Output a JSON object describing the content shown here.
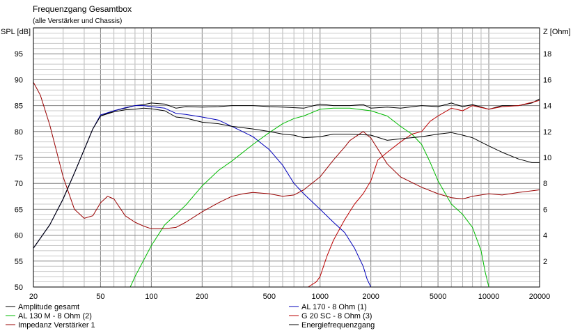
{
  "chart_data": {
    "type": "line",
    "title": "Frequenzgang Gesamtbox",
    "subtitle": "(alle Verstärker und Chassis)",
    "ylabel": "SPL [dB]",
    "y2label": "Z [Ohm]",
    "x_scale": "log",
    "xlim": [
      20,
      20000
    ],
    "ylim": [
      50,
      100
    ],
    "y2lim": [
      0,
      20
    ],
    "grid": true,
    "x_ticks": [
      {
        "value": 20,
        "label": "20"
      },
      {
        "value": 50,
        "label": "50"
      },
      {
        "value": 100,
        "label": "100"
      },
      {
        "value": 200,
        "label": "200"
      },
      {
        "value": 500,
        "label": "500"
      },
      {
        "value": 1000,
        "label": "1000"
      },
      {
        "value": 2000,
        "label": "2000"
      },
      {
        "value": 5000,
        "label": "5000"
      },
      {
        "value": 10000,
        "label": "10000"
      },
      {
        "value": 20000,
        "label": "20000"
      }
    ],
    "y_ticks": [
      {
        "value": 95,
        "label": "95"
      },
      {
        "value": 90,
        "label": "90"
      },
      {
        "value": 85,
        "label": "85"
      },
      {
        "value": 80,
        "label": "80"
      },
      {
        "value": 75,
        "label": "75"
      },
      {
        "value": 70,
        "label": "70"
      },
      {
        "value": 65,
        "label": "65"
      },
      {
        "value": 60,
        "label": "60"
      },
      {
        "value": 55,
        "label": "55"
      },
      {
        "value": 50,
        "label": "50"
      }
    ],
    "y2_ticks": [
      {
        "value": 18,
        "label": "18"
      },
      {
        "value": 16,
        "label": "16"
      },
      {
        "value": 14,
        "label": "14"
      },
      {
        "value": 12,
        "label": "12"
      },
      {
        "value": 10,
        "label": "10"
      },
      {
        "value": 8,
        "label": "8"
      },
      {
        "value": 6,
        "label": "6"
      },
      {
        "value": 4,
        "label": "4"
      },
      {
        "value": 2,
        "label": "2"
      }
    ],
    "legend_placement": "bottom",
    "series": [
      {
        "name": "Amplitude gesamt",
        "color": "#000000",
        "axis": "left",
        "points": [
          [
            20,
            57.5
          ],
          [
            25,
            62
          ],
          [
            30,
            67
          ],
          [
            35,
            72
          ],
          [
            40,
            76.5
          ],
          [
            45,
            80.5
          ],
          [
            50,
            83
          ],
          [
            60,
            84
          ],
          [
            70,
            84.5
          ],
          [
            80,
            85
          ],
          [
            90,
            85.2
          ],
          [
            100,
            85.5
          ],
          [
            120,
            85.3
          ],
          [
            140,
            84.5
          ],
          [
            160,
            84.8
          ],
          [
            200,
            84.7
          ],
          [
            250,
            84.8
          ],
          [
            300,
            85
          ],
          [
            400,
            85
          ],
          [
            500,
            84.8
          ],
          [
            600,
            84.7
          ],
          [
            800,
            84.5
          ],
          [
            1000,
            85.3
          ],
          [
            1200,
            85
          ],
          [
            1500,
            85
          ],
          [
            1800,
            85.2
          ],
          [
            2000,
            84.5
          ],
          [
            2500,
            84.7
          ],
          [
            3000,
            84.5
          ],
          [
            4000,
            85
          ],
          [
            5000,
            84.8
          ],
          [
            6000,
            85.5
          ],
          [
            7000,
            84.8
          ],
          [
            8000,
            85.2
          ],
          [
            10000,
            84.3
          ],
          [
            12000,
            85
          ],
          [
            15000,
            85
          ],
          [
            18000,
            85.5
          ],
          [
            20000,
            86.3
          ]
        ]
      },
      {
        "name": "AL 170 - 8 Ohm (1)",
        "color": "#0000bb",
        "axis": "left",
        "points": [
          [
            20,
            57.5
          ],
          [
            25,
            62
          ],
          [
            30,
            67
          ],
          [
            35,
            72
          ],
          [
            40,
            76.5
          ],
          [
            45,
            80.5
          ],
          [
            50,
            83.2
          ],
          [
            60,
            84
          ],
          [
            70,
            84.6
          ],
          [
            80,
            85
          ],
          [
            90,
            85
          ],
          [
            100,
            84.8
          ],
          [
            120,
            84.5
          ],
          [
            140,
            83.5
          ],
          [
            160,
            83.3
          ],
          [
            200,
            82.8
          ],
          [
            250,
            82.2
          ],
          [
            300,
            81
          ],
          [
            400,
            79
          ],
          [
            500,
            76.5
          ],
          [
            600,
            73.5
          ],
          [
            700,
            70
          ],
          [
            800,
            68
          ],
          [
            1000,
            65
          ],
          [
            1200,
            62.5
          ],
          [
            1400,
            60.5
          ],
          [
            1600,
            57.5
          ],
          [
            1800,
            54
          ],
          [
            1900,
            51.5
          ],
          [
            2000,
            50
          ],
          [
            2500,
            50
          ],
          [
            5000,
            50
          ],
          [
            10000,
            50
          ],
          [
            20000,
            50
          ]
        ]
      },
      {
        "name": "AL 130 M - 8 Ohm (2)",
        "color": "#00bb00",
        "axis": "left",
        "points": [
          [
            20,
            50
          ],
          [
            40,
            50
          ],
          [
            60,
            50
          ],
          [
            75,
            50
          ],
          [
            80,
            52
          ],
          [
            100,
            58
          ],
          [
            120,
            62
          ],
          [
            140,
            64
          ],
          [
            160,
            65.8
          ],
          [
            200,
            69.5
          ],
          [
            250,
            72.5
          ],
          [
            300,
            74.3
          ],
          [
            400,
            77.5
          ],
          [
            500,
            79.8
          ],
          [
            600,
            81.5
          ],
          [
            700,
            82.5
          ],
          [
            800,
            83
          ],
          [
            1000,
            84.3
          ],
          [
            1200,
            84.5
          ],
          [
            1500,
            84.5
          ],
          [
            2000,
            84
          ],
          [
            2500,
            83
          ],
          [
            3000,
            81
          ],
          [
            3500,
            79.5
          ],
          [
            4000,
            77.5
          ],
          [
            4500,
            74
          ],
          [
            5000,
            70.5
          ],
          [
            6000,
            66
          ],
          [
            7000,
            64
          ],
          [
            8000,
            61.5
          ],
          [
            9000,
            57
          ],
          [
            9500,
            53
          ],
          [
            10000,
            50
          ],
          [
            20000,
            50
          ]
        ]
      },
      {
        "name": "G 20 SC - 8 Ohm (3)",
        "color": "#bb0000",
        "axis": "left",
        "points": [
          [
            20,
            50
          ],
          [
            100,
            50
          ],
          [
            500,
            50
          ],
          [
            850,
            50
          ],
          [
            950,
            51
          ],
          [
            1000,
            52
          ],
          [
            1100,
            56
          ],
          [
            1200,
            59
          ],
          [
            1400,
            63
          ],
          [
            1600,
            66
          ],
          [
            1800,
            68
          ],
          [
            2000,
            70.5
          ],
          [
            2200,
            74.5
          ],
          [
            2500,
            76
          ],
          [
            3000,
            78
          ],
          [
            3500,
            79.5
          ],
          [
            4000,
            80
          ],
          [
            4500,
            82
          ],
          [
            5000,
            83
          ],
          [
            6000,
            84.5
          ],
          [
            7000,
            84
          ],
          [
            8000,
            85
          ],
          [
            10000,
            84.3
          ],
          [
            12000,
            84.8
          ],
          [
            15000,
            85
          ],
          [
            20000,
            86
          ]
        ]
      },
      {
        "name": "Impedanz Verstärker 1",
        "color": "#990000",
        "axis": "right",
        "points": [
          [
            20,
            15.8
          ],
          [
            22,
            14.8
          ],
          [
            25,
            12.5
          ],
          [
            30,
            8.5
          ],
          [
            35,
            6
          ],
          [
            40,
            5.3
          ],
          [
            45,
            5.5
          ],
          [
            50,
            6.5
          ],
          [
            55,
            7
          ],
          [
            60,
            6.8
          ],
          [
            70,
            5.5
          ],
          [
            80,
            5
          ],
          [
            90,
            4.7
          ],
          [
            100,
            4.5
          ],
          [
            120,
            4.5
          ],
          [
            140,
            4.6
          ],
          [
            160,
            5
          ],
          [
            200,
            5.8
          ],
          [
            250,
            6.5
          ],
          [
            300,
            7
          ],
          [
            350,
            7.2
          ],
          [
            400,
            7.3
          ],
          [
            500,
            7.2
          ],
          [
            600,
            7
          ],
          [
            700,
            7.1
          ],
          [
            800,
            7.5
          ],
          [
            1000,
            8.5
          ],
          [
            1200,
            9.8
          ],
          [
            1400,
            10.8
          ],
          [
            1500,
            11.3
          ],
          [
            1800,
            12
          ],
          [
            2000,
            11.5
          ],
          [
            2500,
            9.5
          ],
          [
            3000,
            8.5
          ],
          [
            4000,
            7.7
          ],
          [
            5000,
            7.2
          ],
          [
            6000,
            6.9
          ],
          [
            7000,
            6.8
          ],
          [
            8000,
            7
          ],
          [
            10000,
            7.2
          ],
          [
            12000,
            7.1
          ],
          [
            15000,
            7.3
          ],
          [
            20000,
            7.5
          ]
        ]
      },
      {
        "name": "Energiefrequenzgang",
        "color": "#000000",
        "axis": "left",
        "points": [
          [
            20,
            57.5
          ],
          [
            25,
            62
          ],
          [
            30,
            67
          ],
          [
            35,
            72
          ],
          [
            40,
            76.5
          ],
          [
            45,
            80.5
          ],
          [
            50,
            83
          ],
          [
            60,
            83.8
          ],
          [
            70,
            84.2
          ],
          [
            80,
            84.3
          ],
          [
            90,
            84.5
          ],
          [
            100,
            84.4
          ],
          [
            120,
            84
          ],
          [
            140,
            82.8
          ],
          [
            160,
            82.6
          ],
          [
            200,
            81.8
          ],
          [
            250,
            81.5
          ],
          [
            300,
            81
          ],
          [
            400,
            80.5
          ],
          [
            500,
            80
          ],
          [
            600,
            79.5
          ],
          [
            700,
            79.3
          ],
          [
            800,
            78.8
          ],
          [
            1000,
            79
          ],
          [
            1200,
            79.5
          ],
          [
            1500,
            79.5
          ],
          [
            2000,
            79.3
          ],
          [
            2500,
            78.3
          ],
          [
            3000,
            78.6
          ],
          [
            4000,
            79
          ],
          [
            5000,
            79.5
          ],
          [
            6000,
            79.8
          ],
          [
            7000,
            79.3
          ],
          [
            8000,
            78.8
          ],
          [
            10000,
            77.2
          ],
          [
            12000,
            76
          ],
          [
            15000,
            74.7
          ],
          [
            18000,
            74
          ],
          [
            20000,
            74
          ]
        ]
      }
    ]
  }
}
